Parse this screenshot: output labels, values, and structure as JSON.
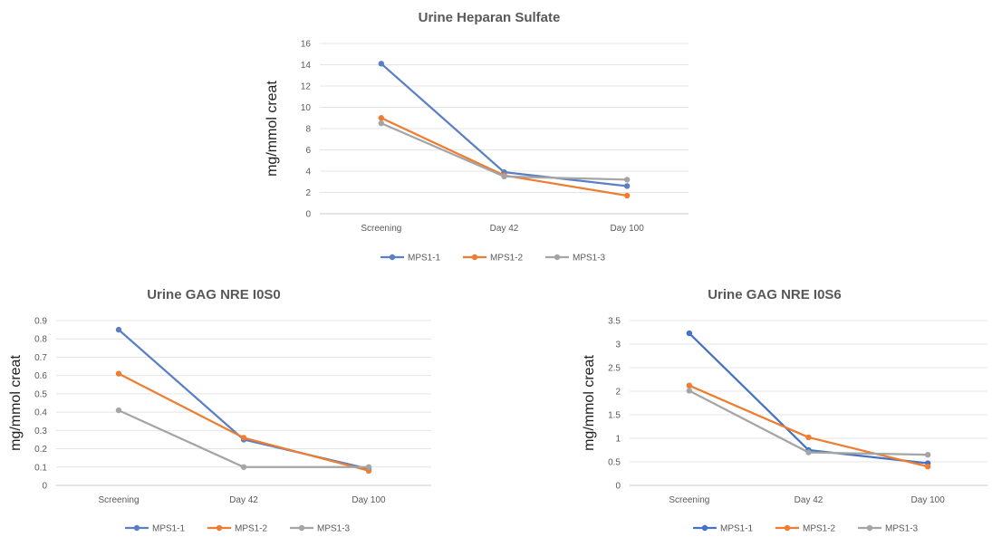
{
  "chart_data": [
    {
      "type": "line",
      "title": "Urine Heparan Sulfate",
      "xlabel": "",
      "ylabel": "mg/mmol creat",
      "categories": [
        "Screening",
        "Day 42",
        "Day 100"
      ],
      "yticks": [
        "0",
        "2",
        "4",
        "6",
        "8",
        "10",
        "12",
        "14",
        "16"
      ],
      "ylim": [
        0,
        16
      ],
      "grid": true,
      "legend_position": "bottom",
      "series": [
        {
          "name": "MPS1-1",
          "color": "#5b7fc4",
          "values": [
            14.1,
            3.9,
            2.6
          ]
        },
        {
          "name": "MPS1-2",
          "color": "#ed7d31",
          "values": [
            9.0,
            3.6,
            1.7
          ]
        },
        {
          "name": "MPS1-3",
          "color": "#a5a5a5",
          "values": [
            8.5,
            3.5,
            3.2
          ]
        }
      ]
    },
    {
      "type": "line",
      "title": "Urine GAG NRE I0S0",
      "xlabel": "",
      "ylabel": "mg/mmol creat",
      "categories": [
        "Screening",
        "Day 42",
        "Day 100"
      ],
      "yticks": [
        "0",
        "0.1",
        "0.2",
        "0.3",
        "0.4",
        "0.5",
        "0.6",
        "0.7",
        "0.8",
        "0.9"
      ],
      "ylim": [
        0,
        0.9
      ],
      "grid": true,
      "legend_position": "bottom",
      "series": [
        {
          "name": "MPS1-1",
          "color": "#5b7fc4",
          "values": [
            0.85,
            0.25,
            0.09
          ]
        },
        {
          "name": "MPS1-2",
          "color": "#ed7d31",
          "values": [
            0.61,
            0.26,
            0.08
          ]
        },
        {
          "name": "MPS1-3",
          "color": "#a5a5a5",
          "values": [
            0.41,
            0.1,
            0.1
          ]
        }
      ]
    },
    {
      "type": "line",
      "title": "Urine GAG NRE I0S6",
      "xlabel": "",
      "ylabel": "mg/mmol creat",
      "categories": [
        "Screening",
        "Day 42",
        "Day 100"
      ],
      "yticks": [
        "0",
        "0.5",
        "1",
        "1.5",
        "2",
        "2.5",
        "3",
        "3.5"
      ],
      "ylim": [
        0,
        3.5
      ],
      "grid": true,
      "legend_position": "bottom",
      "series": [
        {
          "name": "MPS1-1",
          "color": "#4472c4",
          "values": [
            3.23,
            0.75,
            0.47
          ]
        },
        {
          "name": "MPS1-2",
          "color": "#ed7d31",
          "values": [
            2.12,
            1.02,
            0.4
          ]
        },
        {
          "name": "MPS1-3",
          "color": "#a5a5a5",
          "values": [
            2.01,
            0.7,
            0.65
          ]
        }
      ]
    }
  ]
}
